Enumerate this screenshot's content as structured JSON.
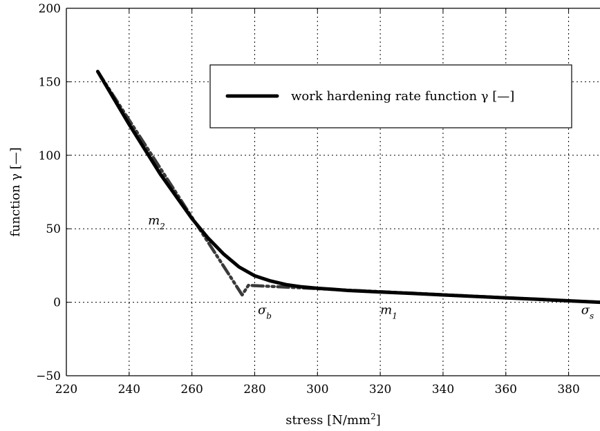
{
  "chart_data": {
    "type": "line",
    "xlabel": "stress [N/mm",
    "xlabel_sup": "2",
    "xlabel_end": "]",
    "ylabel": "function γ [—]",
    "xlim": [
      220,
      390
    ],
    "ylim": [
      -50,
      200
    ],
    "xticks": [
      220,
      240,
      260,
      280,
      300,
      320,
      340,
      360,
      380
    ],
    "yticks": [
      -50,
      0,
      50,
      100,
      150,
      200
    ],
    "ytick_labels": [
      "−50",
      "0",
      "50",
      "100",
      "150",
      "200"
    ],
    "grid": true,
    "legend_position": "top-right",
    "series": [
      {
        "name": "work hardening rate function γ [—]",
        "style": "solid",
        "color": "#000000",
        "x": [
          230,
          235,
          240,
          245,
          250,
          255,
          260,
          265,
          270,
          275,
          280,
          285,
          290,
          295,
          300,
          305,
          310,
          320,
          330,
          340,
          350,
          360,
          370,
          380,
          390
        ],
        "y": [
          157,
          139,
          121,
          104,
          87,
          72,
          57,
          44,
          33,
          24,
          18,
          14.5,
          12,
          10.5,
          9.5,
          8.8,
          8,
          7,
          6,
          5,
          4,
          3,
          2,
          1,
          0
        ]
      },
      {
        "style": "dash-dot-dot",
        "color": "#3a3a3a",
        "x": [
          230,
          276,
          276,
          278,
          390
        ],
        "y": [
          157,
          5,
          5,
          11.5,
          0
        ]
      }
    ],
    "annotations": [
      {
        "text": "m",
        "sub": "2",
        "x": 246,
        "y": 53
      },
      {
        "text": "σ",
        "sub": "b",
        "x": 281,
        "y": -8
      },
      {
        "text": "m",
        "sub": "1",
        "x": 320,
        "y": -8
      },
      {
        "text": "σ",
        "sub": "s",
        "x": 384,
        "y": -8
      }
    ]
  }
}
